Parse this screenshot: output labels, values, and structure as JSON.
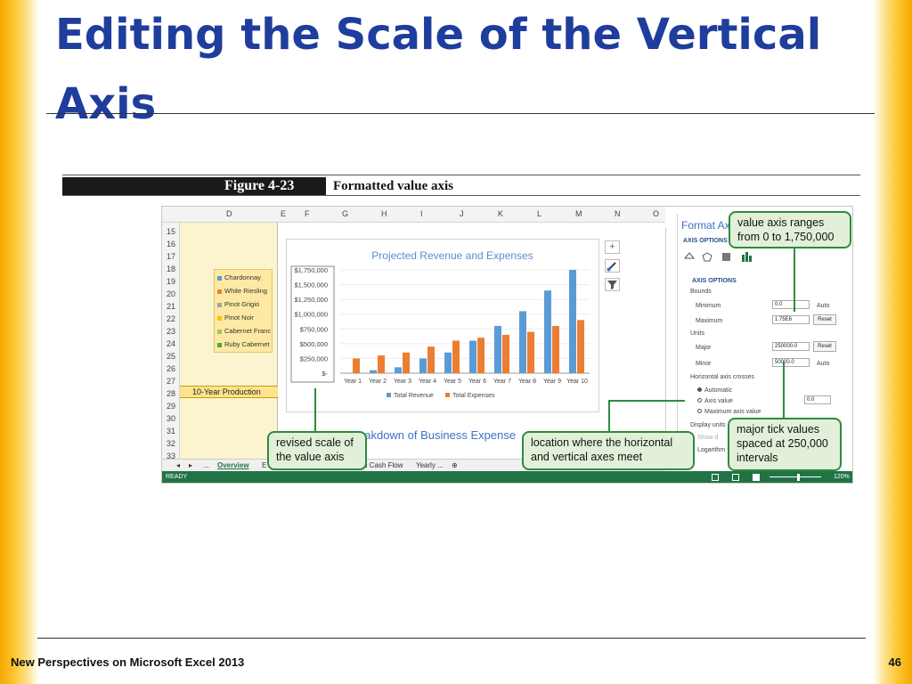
{
  "slide": {
    "title": "Editing the Scale of the Vertical Axis",
    "footer_left": "New Perspectives on Microsoft Excel 2013",
    "page_number": "46"
  },
  "figure": {
    "number": "Figure 4-23",
    "caption": "Formatted value axis"
  },
  "spreadsheet": {
    "columns": [
      "D",
      "E",
      "F",
      "G",
      "H",
      "I",
      "J",
      "K",
      "L",
      "M",
      "N",
      "O"
    ],
    "rows": [
      "15",
      "16",
      "17",
      "18",
      "19",
      "20",
      "21",
      "22",
      "23",
      "24",
      "25",
      "26",
      "27",
      "28",
      "29",
      "30",
      "31",
      "32",
      "33"
    ],
    "production_label": "10-Year Production",
    "wine_legend": [
      {
        "label": "Chardonnay",
        "color": "#5b9bd5"
      },
      {
        "label": "White Riesling",
        "color": "#ed7d31"
      },
      {
        "label": "Pinot Grigio",
        "color": "#a5a5a5"
      },
      {
        "label": "Pinot Noir",
        "color": "#ffc000"
      },
      {
        "label": "Cabernet Franc",
        "color": "#9dc567"
      },
      {
        "label": "Ruby Cabernet",
        "color": "#4aa54a"
      }
    ],
    "second_chart_title": "eakdown of Business Expense",
    "sheet_tabs": [
      "...",
      "Overview",
      "E",
      "d Cash Flow",
      "Yearly ..."
    ],
    "status": "READY",
    "zoom": "120%",
    "plus_icon_label": "+",
    "brush_icon": "brush-icon",
    "filter_icon": "filter-icon"
  },
  "chart_data": {
    "type": "bar",
    "title": "Projected Revenue and Expenses",
    "categories": [
      "Year 1",
      "Year 2",
      "Year 3",
      "Year 4",
      "Year 5",
      "Year 6",
      "Year 7",
      "Year 8",
      "Year 9",
      "Year 10"
    ],
    "series": [
      {
        "name": "Total Revenue",
        "color": "#5b9bd5",
        "values": [
          0,
          50000,
          100000,
          250000,
          350000,
          550000,
          800000,
          1050000,
          1400000,
          1750000
        ]
      },
      {
        "name": "Total Expenses",
        "color": "#ed7d31",
        "values": [
          250000,
          300000,
          350000,
          450000,
          550000,
          600000,
          650000,
          700000,
          800000,
          900000
        ]
      }
    ],
    "yticks": [
      "$-",
      "$250,000",
      "$500,000",
      "$750,000",
      "$1,000,000",
      "$1,250,000",
      "$1,500,000",
      "$1,750,000"
    ],
    "ylim": [
      0,
      1750000
    ],
    "legend_position": "bottom"
  },
  "format_pane": {
    "title": "Format Axi",
    "options_header": "AXIS OPTIONS",
    "section": "AXIS OPTIONS",
    "bounds_label": "Bounds",
    "minimum_label": "Minimum",
    "minimum_value": "0.0",
    "minimum_state": "Auto",
    "maximum_label": "Maximum",
    "maximum_value": "1.75E6",
    "maximum_button": "Reset",
    "units_label": "Units",
    "major_label": "Major",
    "major_value": "250000.0",
    "major_button": "Reset",
    "minor_label": "Minor",
    "minor_value": "50000.0",
    "minor_state": "Auto",
    "crosses_label": "Horizontal axis crosses",
    "crosses_options": [
      "Automatic",
      "Axis value",
      "Maximum axis value"
    ],
    "axis_value_field": "0.0",
    "display_units_label": "Display units",
    "show_units_label": "Show d",
    "logarithmic_label": "Logarithm"
  },
  "callouts": {
    "range": "value axis ranges from 0 to 1,750,000",
    "scale": "revised scale of the value axis",
    "location": "location where the horizontal and vertical axes meet",
    "ticks": "major tick values spaced at 250,000 intervals"
  }
}
